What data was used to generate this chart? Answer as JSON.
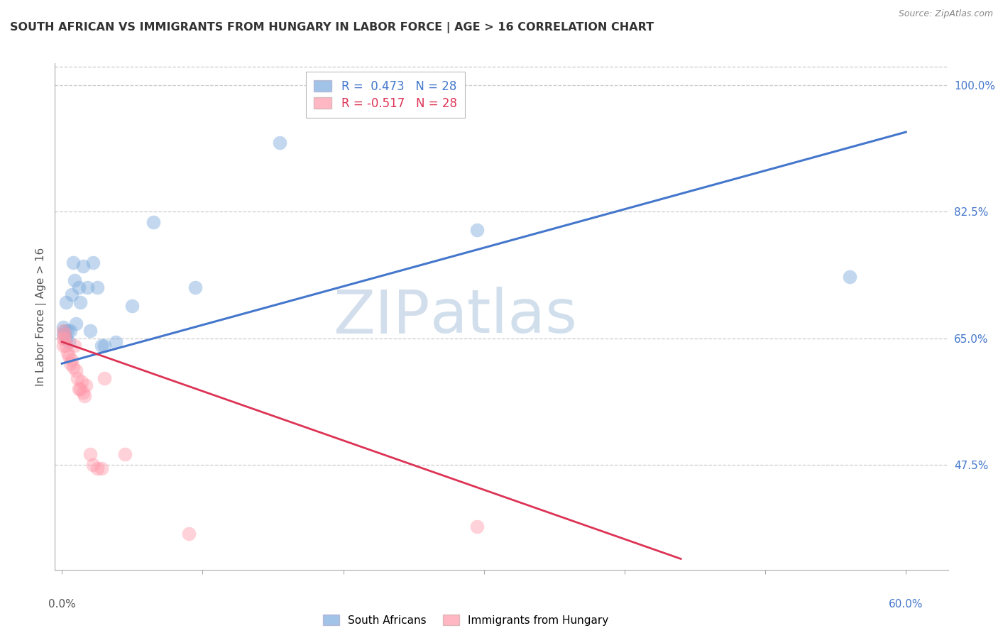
{
  "title": "SOUTH AFRICAN VS IMMIGRANTS FROM HUNGARY IN LABOR FORCE | AGE > 16 CORRELATION CHART",
  "source": "Source: ZipAtlas.com",
  "ylabel": "In Labor Force | Age > 16",
  "ylim": [
    0.33,
    1.03
  ],
  "xlim": [
    -0.005,
    0.63
  ],
  "xtick_vals": [
    0.0,
    0.1,
    0.2,
    0.3,
    0.4,
    0.5,
    0.6
  ],
  "xtick_labels": [
    "0.0%",
    "",
    "",
    "",
    "",
    "",
    "60.0%"
  ],
  "right_yticks": [
    1.0,
    0.825,
    0.65,
    0.475
  ],
  "right_yticklabels": [
    "100.0%",
    "82.5%",
    "65.0%",
    "47.5%"
  ],
  "blue_color": "#7aaadd",
  "pink_color": "#ff99aa",
  "blue_line_color": "#4477cc",
  "pink_line_color": "#dd3355",
  "legend_label_blue": "South Africans",
  "legend_label_pink": "Immigrants from Hungary",
  "watermark_zip": "ZIP",
  "watermark_atlas": "atlas",
  "bg_color": "#ffffff",
  "grid_color": "#cccccc",
  "title_color": "#333333",
  "right_tick_color": "#4477cc",
  "blue_x": [
    0.001,
    0.001,
    0.002,
    0.003,
    0.003,
    0.004,
    0.005,
    0.006,
    0.007,
    0.008,
    0.009,
    0.01,
    0.012,
    0.013,
    0.015,
    0.018,
    0.02,
    0.022,
    0.025,
    0.028,
    0.03,
    0.038,
    0.05,
    0.065,
    0.095,
    0.155,
    0.295,
    0.56
  ],
  "blue_y": [
    0.655,
    0.665,
    0.66,
    0.65,
    0.7,
    0.66,
    0.645,
    0.66,
    0.71,
    0.755,
    0.73,
    0.67,
    0.72,
    0.7,
    0.75,
    0.72,
    0.66,
    0.755,
    0.72,
    0.64,
    0.64,
    0.645,
    0.695,
    0.81,
    0.72,
    0.92,
    0.8,
    0.735
  ],
  "pink_x": [
    0.001,
    0.001,
    0.001,
    0.002,
    0.002,
    0.003,
    0.004,
    0.005,
    0.006,
    0.007,
    0.008,
    0.009,
    0.01,
    0.011,
    0.012,
    0.013,
    0.014,
    0.015,
    0.016,
    0.017,
    0.02,
    0.022,
    0.025,
    0.028,
    0.03,
    0.045,
    0.09,
    0.295
  ],
  "pink_y": [
    0.64,
    0.65,
    0.66,
    0.65,
    0.655,
    0.64,
    0.63,
    0.625,
    0.615,
    0.62,
    0.61,
    0.64,
    0.605,
    0.595,
    0.58,
    0.58,
    0.59,
    0.575,
    0.57,
    0.585,
    0.49,
    0.475,
    0.47,
    0.47,
    0.595,
    0.49,
    0.38,
    0.39
  ],
  "blue_trend_x": [
    0.0,
    0.6
  ],
  "blue_trend_y": [
    0.615,
    0.935
  ],
  "pink_trend_x": [
    0.0,
    0.44
  ],
  "pink_trend_y": [
    0.645,
    0.345
  ],
  "scatter_size": 200
}
